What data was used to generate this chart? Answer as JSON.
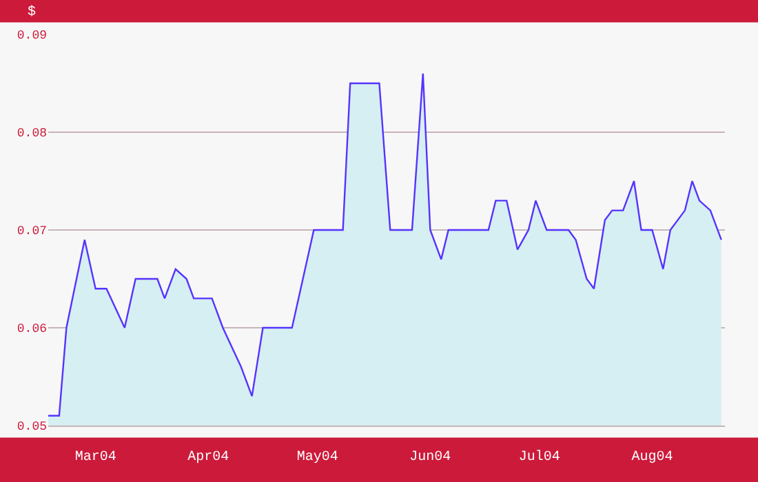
{
  "chart_data": {
    "type": "area",
    "ylabel": "$",
    "x": [
      "2004-02-17",
      "2004-02-20",
      "2004-02-22",
      "2004-02-27",
      "2004-03-01",
      "2004-03-04",
      "2004-03-09",
      "2004-03-12",
      "2004-03-18",
      "2004-03-20",
      "2004-03-23",
      "2004-03-26",
      "2004-03-28",
      "2004-04-02",
      "2004-04-05",
      "2004-04-10",
      "2004-04-13",
      "2004-04-16",
      "2004-04-24",
      "2004-04-30",
      "2004-05-08",
      "2004-05-10",
      "2004-05-18",
      "2004-05-21",
      "2004-05-27",
      "2004-05-30",
      "2004-06-01",
      "2004-06-04",
      "2004-06-06",
      "2004-06-17",
      "2004-06-19",
      "2004-06-22",
      "2004-06-25",
      "2004-06-28",
      "2004-06-30",
      "2004-07-03",
      "2004-07-09",
      "2004-07-11",
      "2004-07-14",
      "2004-07-16",
      "2004-07-19",
      "2004-07-21",
      "2004-07-24",
      "2004-07-27",
      "2004-07-29",
      "2004-08-01",
      "2004-08-04",
      "2004-08-06",
      "2004-08-10",
      "2004-08-12",
      "2004-08-14",
      "2004-08-17",
      "2004-08-20"
    ],
    "series": [
      {
        "color": "#5533ff",
        "values": [
          0.051,
          0.051,
          0.06,
          0.069,
          0.064,
          0.064,
          0.06,
          0.065,
          0.065,
          0.063,
          0.066,
          0.065,
          0.063,
          0.063,
          0.06,
          0.056,
          0.053,
          0.06,
          0.06,
          0.07,
          0.07,
          0.085,
          0.085,
          0.07,
          0.07,
          0.086,
          0.07,
          0.067,
          0.07,
          0.07,
          0.073,
          0.073,
          0.068,
          0.07,
          0.073,
          0.07,
          0.07,
          0.069,
          0.065,
          0.064,
          0.071,
          0.072,
          0.072,
          0.075,
          0.07,
          0.07,
          0.066,
          0.07,
          0.072,
          0.075,
          0.073,
          0.072,
          0.069
        ]
      }
    ],
    "xlim": [
      "2004-02-17",
      "2004-08-21"
    ],
    "xticks": [
      {
        "value": "2004-03-01",
        "label": "Mar04"
      },
      {
        "value": "2004-04-01",
        "label": "Apr04"
      },
      {
        "value": "2004-05-01",
        "label": "May04"
      },
      {
        "value": "2004-06-01",
        "label": "Jun04"
      },
      {
        "value": "2004-07-01",
        "label": "Jul04"
      },
      {
        "value": "2004-08-01",
        "label": "Aug04"
      }
    ],
    "ylim": [
      0.05,
      0.09
    ],
    "yticks": [
      0.05,
      0.06,
      0.07,
      0.08,
      0.09
    ],
    "grid": "y",
    "marker": "none",
    "line_style": "solid"
  }
}
